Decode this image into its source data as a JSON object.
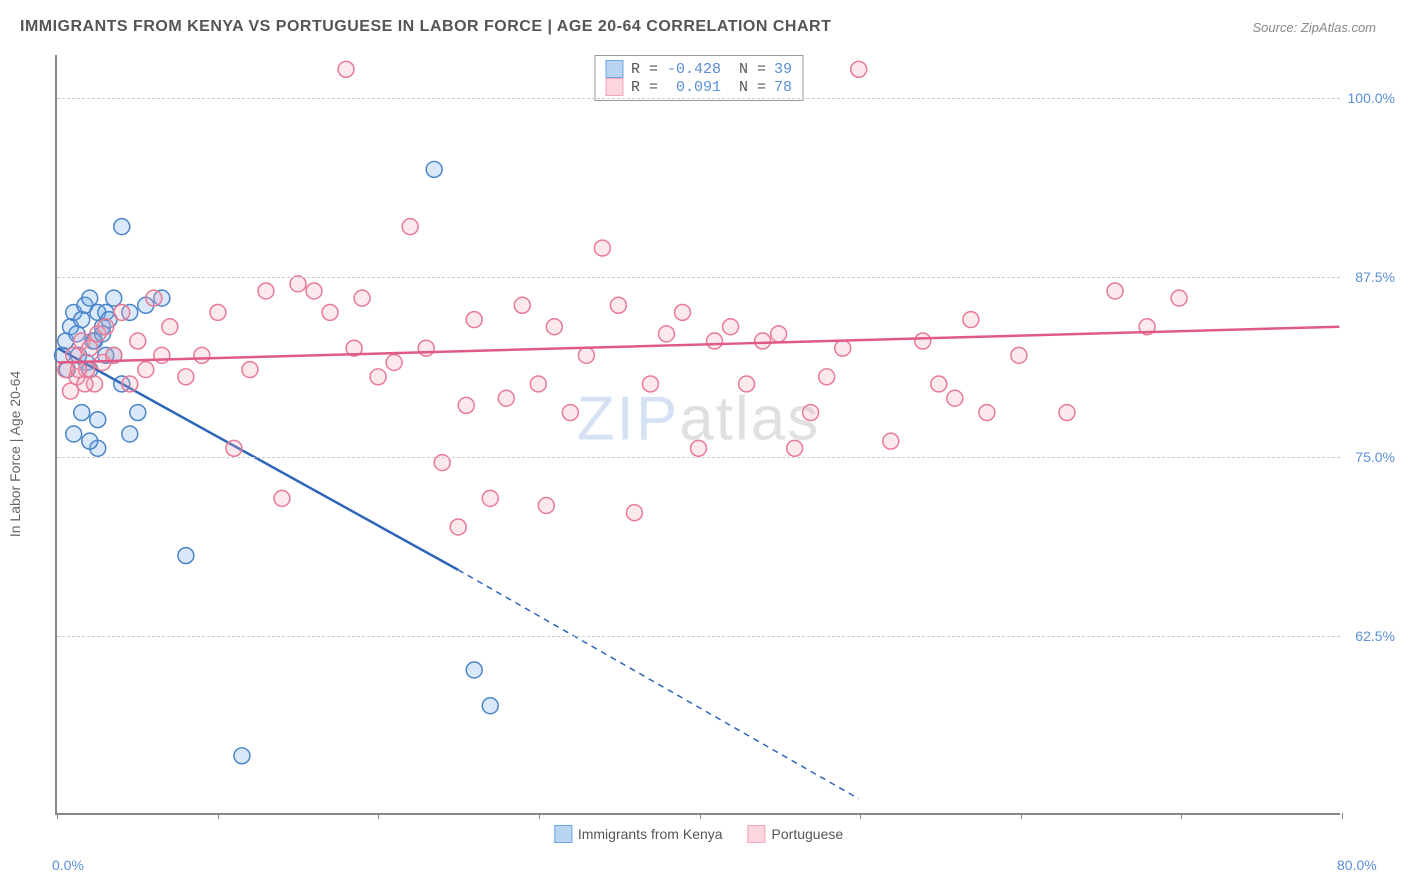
{
  "title": "IMMIGRANTS FROM KENYA VS PORTUGUESE IN LABOR FORCE | AGE 20-64 CORRELATION CHART",
  "source": "Source: ZipAtlas.com",
  "y_axis_label": "In Labor Force | Age 20-64",
  "watermark_a": "ZIP",
  "watermark_b": "atlas",
  "chart": {
    "type": "scatter",
    "xlim": [
      0,
      80
    ],
    "ylim": [
      50,
      103
    ],
    "x_ticks": [
      0,
      10,
      20,
      30,
      40,
      50,
      60,
      70,
      80
    ],
    "x_tick_labels": {
      "0": "0.0%",
      "80": "80.0%"
    },
    "y_gridlines": [
      62.5,
      75,
      87.5,
      100
    ],
    "y_tick_labels": {
      "62.5": "62.5%",
      "75": "75.0%",
      "87.5": "87.5%",
      "100": "100.0%"
    },
    "background_color": "#ffffff",
    "grid_color": "#cccccc",
    "axis_color": "#888888",
    "tick_label_color": "#5b8fd6",
    "axis_label_color": "#666666",
    "marker_radius": 8,
    "marker_fill_opacity": 0.25,
    "marker_stroke_width": 1.5,
    "series": [
      {
        "name": "Immigrants from Kenya",
        "color": "#6ca6e8",
        "stroke": "#4a85c9",
        "line_color": "#2e66b8",
        "R": "-0.428",
        "N": "39",
        "trend": {
          "x1": 0,
          "y1": 82.5,
          "x2_solid": 25,
          "y2_solid": 67,
          "x2_dash": 50,
          "y2_dash": 51
        },
        "points": [
          [
            0.3,
            82
          ],
          [
            0.5,
            83
          ],
          [
            0.6,
            81
          ],
          [
            0.8,
            84
          ],
          [
            1.0,
            85
          ],
          [
            1.2,
            83.5
          ],
          [
            1.3,
            82
          ],
          [
            1.5,
            84.5
          ],
          [
            1.7,
            85.5
          ],
          [
            1.8,
            81.5
          ],
          [
            2.0,
            86
          ],
          [
            2.2,
            83
          ],
          [
            2.5,
            85
          ],
          [
            2.8,
            84
          ],
          [
            3.0,
            82
          ],
          [
            3.5,
            86
          ],
          [
            4.0,
            91
          ],
          [
            4.5,
            85
          ],
          [
            5.0,
            78
          ],
          [
            5.5,
            85.5
          ],
          [
            6.5,
            86
          ],
          [
            8.0,
            68
          ],
          [
            1.0,
            76.5
          ],
          [
            1.5,
            78
          ],
          [
            2.0,
            81
          ],
          [
            2.3,
            83
          ],
          [
            3.0,
            85
          ],
          [
            3.5,
            82
          ],
          [
            4.0,
            80
          ],
          [
            4.5,
            76.5
          ],
          [
            2.5,
            75.5
          ],
          [
            2.0,
            76
          ],
          [
            23.5,
            95
          ],
          [
            26.0,
            60
          ],
          [
            27.0,
            57.5
          ],
          [
            11.5,
            54
          ],
          [
            2.5,
            77.5
          ],
          [
            2.8,
            83.5
          ],
          [
            3.2,
            84.5
          ]
        ]
      },
      {
        "name": "Portuguese",
        "color": "#f5a6b8",
        "stroke": "#e87a95",
        "line_color": "#e05a86",
        "R": "0.091",
        "N": "78",
        "trend": {
          "x1": 0,
          "y1": 81.5,
          "x2_solid": 80,
          "y2_solid": 84
        },
        "points": [
          [
            0.5,
            81
          ],
          [
            1.0,
            82
          ],
          [
            1.2,
            80.5
          ],
          [
            1.5,
            83
          ],
          [
            1.8,
            81
          ],
          [
            2.0,
            82.5
          ],
          [
            2.3,
            80
          ],
          [
            2.5,
            83.5
          ],
          [
            2.8,
            81.5
          ],
          [
            3.0,
            84
          ],
          [
            3.5,
            82
          ],
          [
            4.0,
            85
          ],
          [
            4.5,
            80
          ],
          [
            5.0,
            83
          ],
          [
            5.5,
            81
          ],
          [
            6.0,
            86
          ],
          [
            6.5,
            82
          ],
          [
            7.0,
            84
          ],
          [
            8.0,
            80.5
          ],
          [
            9.0,
            82
          ],
          [
            10.0,
            85
          ],
          [
            11.0,
            75.5
          ],
          [
            12.0,
            81
          ],
          [
            13.0,
            86.5
          ],
          [
            14.0,
            72
          ],
          [
            15.0,
            87
          ],
          [
            16.0,
            86.5
          ],
          [
            17.0,
            85
          ],
          [
            18.0,
            102
          ],
          [
            18.5,
            82.5
          ],
          [
            19.0,
            86
          ],
          [
            20.0,
            80.5
          ],
          [
            21.0,
            81.5
          ],
          [
            22.0,
            91
          ],
          [
            23.0,
            82.5
          ],
          [
            24.0,
            74.5
          ],
          [
            25.0,
            70
          ],
          [
            25.5,
            78.5
          ],
          [
            26.0,
            84.5
          ],
          [
            27.0,
            72
          ],
          [
            28.0,
            79
          ],
          [
            29.0,
            85.5
          ],
          [
            30.0,
            80
          ],
          [
            30.5,
            71.5
          ],
          [
            31.0,
            84
          ],
          [
            32.0,
            78
          ],
          [
            33.0,
            82
          ],
          [
            34.0,
            89.5
          ],
          [
            35.0,
            85.5
          ],
          [
            36.0,
            71
          ],
          [
            37.0,
            80
          ],
          [
            38.0,
            83.5
          ],
          [
            39.0,
            85
          ],
          [
            40.0,
            75.5
          ],
          [
            41.0,
            83
          ],
          [
            42.0,
            84
          ],
          [
            43.0,
            80
          ],
          [
            44.0,
            83
          ],
          [
            45.0,
            83.5
          ],
          [
            46.0,
            75.5
          ],
          [
            47.0,
            78
          ],
          [
            48.0,
            80.5
          ],
          [
            49.0,
            82.5
          ],
          [
            50.0,
            102
          ],
          [
            52.0,
            76
          ],
          [
            54.0,
            83
          ],
          [
            55.0,
            80
          ],
          [
            56.0,
            79
          ],
          [
            57.0,
            84.5
          ],
          [
            58.0,
            78
          ],
          [
            60.0,
            82
          ],
          [
            63.0,
            78
          ],
          [
            66.0,
            86.5
          ],
          [
            68.0,
            84
          ],
          [
            70.0,
            86
          ],
          [
            0.8,
            79.5
          ],
          [
            1.3,
            81
          ],
          [
            1.7,
            80
          ]
        ]
      }
    ]
  },
  "legend_top": [
    {
      "swatch_fill": "#b8d4f0",
      "swatch_border": "#6ca6e8",
      "R_label": "R =",
      "R_val": "-0.428",
      "N_label": "N =",
      "N_val": "39"
    },
    {
      "swatch_fill": "#fcd5df",
      "swatch_border": "#f5a6b8",
      "R_label": "R =",
      "R_val": "0.091",
      "N_label": "N =",
      "N_val": "78"
    }
  ],
  "legend_bottom": [
    {
      "swatch_fill": "#b8d4f0",
      "swatch_border": "#6ca6e8",
      "label": "Immigrants from Kenya"
    },
    {
      "swatch_fill": "#fcd5df",
      "swatch_border": "#f5a6b8",
      "label": "Portuguese"
    }
  ]
}
